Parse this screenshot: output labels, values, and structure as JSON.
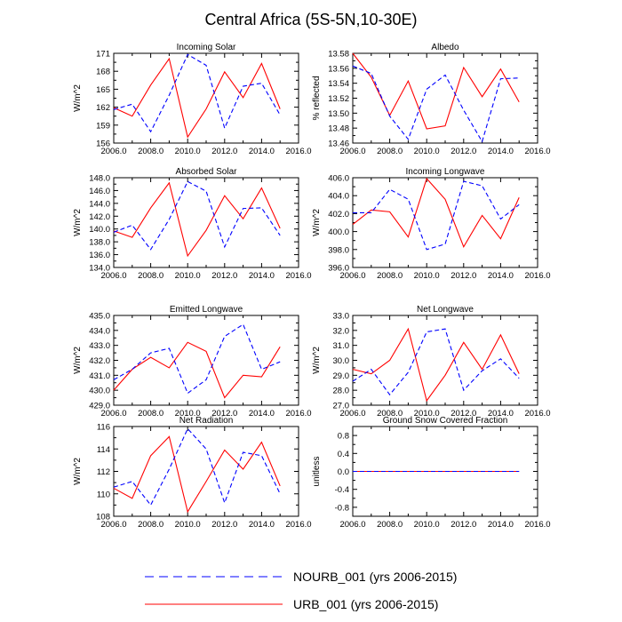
{
  "figure_title": "Central Africa (5S-5N,10-30E)",
  "legend": [
    {
      "name": "NOURB_001 (yrs 2006-2015)",
      "color": "#0000ff",
      "dash": true
    },
    {
      "name": "URB_001 (yrs 2006-2015)",
      "color": "#ff0000",
      "dash": false
    }
  ],
  "chart_data": [
    {
      "type": "line",
      "title": "Incoming Solar",
      "ylabel": "W/m^2",
      "xlim": [
        2006,
        2016
      ],
      "xticks": [
        2006,
        2008,
        2010,
        2012,
        2014,
        2016
      ],
      "xtick_decimals": 1,
      "ylim": [
        156,
        171
      ],
      "yticks": [
        156,
        159,
        162,
        165,
        168,
        171
      ],
      "ytick_decimals": 0,
      "x": [
        2006,
        2007,
        2008,
        2009,
        2010,
        2011,
        2012,
        2013,
        2014,
        2015
      ],
      "series": [
        {
          "name": "NOURB_001",
          "values": [
            161.6,
            162.5,
            157.9,
            164.0,
            170.8,
            169.0,
            158.5,
            165.5,
            166.0,
            160.7
          ]
        },
        {
          "name": "URB_001",
          "values": [
            161.9,
            160.5,
            165.7,
            170.1,
            157.0,
            161.7,
            167.9,
            163.6,
            169.3,
            161.7
          ]
        }
      ]
    },
    {
      "type": "line",
      "title": "Albedo",
      "ylabel": "% reflected",
      "xlim": [
        2006,
        2016
      ],
      "xticks": [
        2006,
        2008,
        2010,
        2012,
        2014,
        2016
      ],
      "xtick_decimals": 1,
      "ylim": [
        13.46,
        13.58
      ],
      "yticks": [
        13.46,
        13.48,
        13.5,
        13.52,
        13.54,
        13.56,
        13.58
      ],
      "ytick_decimals": 2,
      "x": [
        2006,
        2007,
        2008,
        2009,
        2010,
        2011,
        2012,
        2013,
        2014,
        2015
      ],
      "series": [
        {
          "name": "NOURB_001",
          "values": [
            13.563,
            13.553,
            13.496,
            13.465,
            13.532,
            13.551,
            13.504,
            13.462,
            13.546,
            13.547
          ]
        },
        {
          "name": "URB_001",
          "values": [
            13.58,
            13.548,
            13.497,
            13.543,
            13.479,
            13.483,
            13.561,
            13.522,
            13.559,
            13.515
          ]
        }
      ]
    },
    {
      "type": "line",
      "title": "Absorbed Solar",
      "ylabel": "W/m^2",
      "xlim": [
        2006,
        2016
      ],
      "xticks": [
        2006,
        2008,
        2010,
        2012,
        2014,
        2016
      ],
      "xtick_decimals": 1,
      "ylim": [
        134,
        148
      ],
      "yticks": [
        134,
        136,
        138,
        140,
        142,
        144,
        146,
        148
      ],
      "ytick_decimals": 1,
      "x": [
        2006,
        2007,
        2008,
        2009,
        2010,
        2011,
        2012,
        2013,
        2014,
        2015
      ],
      "series": [
        {
          "name": "NOURB_001",
          "values": [
            139.5,
            140.6,
            136.8,
            141.5,
            147.4,
            145.9,
            137.2,
            143.2,
            143.3,
            139.0
          ]
        },
        {
          "name": "URB_001",
          "values": [
            139.7,
            138.7,
            143.3,
            147.2,
            135.8,
            139.8,
            145.2,
            141.6,
            146.4,
            140.1
          ]
        }
      ]
    },
    {
      "type": "line",
      "title": "Incoming Longwave",
      "ylabel": "W/m^2",
      "xlim": [
        2006,
        2016
      ],
      "xticks": [
        2006,
        2008,
        2010,
        2012,
        2014,
        2016
      ],
      "xtick_decimals": 1,
      "ylim": [
        396,
        406
      ],
      "yticks": [
        396,
        398,
        400,
        402,
        404,
        406
      ],
      "ytick_decimals": 1,
      "x": [
        2006,
        2007,
        2008,
        2009,
        2010,
        2011,
        2012,
        2013,
        2014,
        2015
      ],
      "series": [
        {
          "name": "NOURB_001",
          "values": [
            402.1,
            402.1,
            404.7,
            403.6,
            398.0,
            398.6,
            405.6,
            405.1,
            401.4,
            403.0
          ]
        },
        {
          "name": "URB_001",
          "values": [
            400.8,
            402.4,
            402.2,
            399.4,
            405.9,
            403.6,
            398.3,
            401.8,
            399.2,
            403.8
          ]
        }
      ]
    },
    {
      "type": "line",
      "title": "Emitted Longwave",
      "ylabel": "W/m^2",
      "xlim": [
        2006,
        2016
      ],
      "xticks": [
        2006,
        2008,
        2010,
        2012,
        2014,
        2016
      ],
      "xtick_decimals": 1,
      "ylim": [
        429,
        435
      ],
      "yticks": [
        429,
        430,
        431,
        432,
        433,
        434,
        435
      ],
      "ytick_decimals": 1,
      "x": [
        2006,
        2007,
        2008,
        2009,
        2010,
        2011,
        2012,
        2013,
        2014,
        2015
      ],
      "series": [
        {
          "name": "NOURB_001",
          "values": [
            430.7,
            431.4,
            432.5,
            432.8,
            429.8,
            430.7,
            433.6,
            434.4,
            431.4,
            431.9
          ]
        },
        {
          "name": "URB_001",
          "values": [
            430.0,
            431.4,
            432.2,
            431.5,
            433.2,
            432.6,
            429.5,
            431.0,
            430.9,
            432.9
          ]
        }
      ]
    },
    {
      "type": "line",
      "title": "Net Longwave",
      "ylabel": "W/m^2",
      "xlim": [
        2006,
        2016
      ],
      "xticks": [
        2006,
        2008,
        2010,
        2012,
        2014,
        2016
      ],
      "xtick_decimals": 1,
      "ylim": [
        27,
        33
      ],
      "yticks": [
        27,
        28,
        29,
        30,
        31,
        32,
        33
      ],
      "ytick_decimals": 1,
      "x": [
        2006,
        2007,
        2008,
        2009,
        2010,
        2011,
        2012,
        2013,
        2014,
        2015
      ],
      "series": [
        {
          "name": "NOURB_001",
          "values": [
            28.6,
            29.4,
            27.7,
            29.2,
            31.9,
            32.1,
            28.0,
            29.3,
            30.1,
            28.8
          ]
        },
        {
          "name": "URB_001",
          "values": [
            29.4,
            29.1,
            30.0,
            32.1,
            27.3,
            29.0,
            31.2,
            29.4,
            31.7,
            29.1
          ]
        }
      ]
    },
    {
      "type": "line",
      "title": "Net Radiation",
      "ylabel": "W/m^2",
      "xlim": [
        2006,
        2016
      ],
      "xticks": [
        2006,
        2008,
        2010,
        2012,
        2014,
        2016
      ],
      "xtick_decimals": 1,
      "ylim": [
        108,
        116
      ],
      "yticks": [
        108,
        110,
        112,
        114,
        116
      ],
      "ytick_decimals": 0,
      "x": [
        2006,
        2007,
        2008,
        2009,
        2010,
        2011,
        2012,
        2013,
        2014,
        2015
      ],
      "series": [
        {
          "name": "NOURB_001",
          "values": [
            110.6,
            111.1,
            109.0,
            112.2,
            115.8,
            114.0,
            109.2,
            113.7,
            113.4,
            110.0
          ]
        },
        {
          "name": "URB_001",
          "values": [
            110.5,
            109.6,
            113.4,
            115.1,
            108.4,
            111.1,
            113.9,
            112.2,
            114.6,
            110.7
          ]
        }
      ]
    },
    {
      "type": "line",
      "title": "Ground Snow Covered Fraction",
      "ylabel": "unitless",
      "xlim": [
        2006,
        2016
      ],
      "xticks": [
        2006,
        2008,
        2010,
        2012,
        2014,
        2016
      ],
      "xtick_decimals": 1,
      "ylim": [
        -1.0,
        1.0
      ],
      "yticks": [
        -0.8,
        -0.4,
        0.0,
        0.4,
        0.8
      ],
      "ytick_decimals": 1,
      "x": [
        2006,
        2007,
        2008,
        2009,
        2010,
        2011,
        2012,
        2013,
        2014,
        2015
      ],
      "series": [
        {
          "name": "NOURB_001",
          "values": [
            0,
            0,
            0,
            0,
            0,
            0,
            0,
            0,
            0,
            0
          ]
        },
        {
          "name": "URB_001",
          "values": [
            0,
            0,
            0,
            0,
            0,
            0,
            0,
            0,
            0,
            0
          ]
        }
      ]
    }
  ]
}
